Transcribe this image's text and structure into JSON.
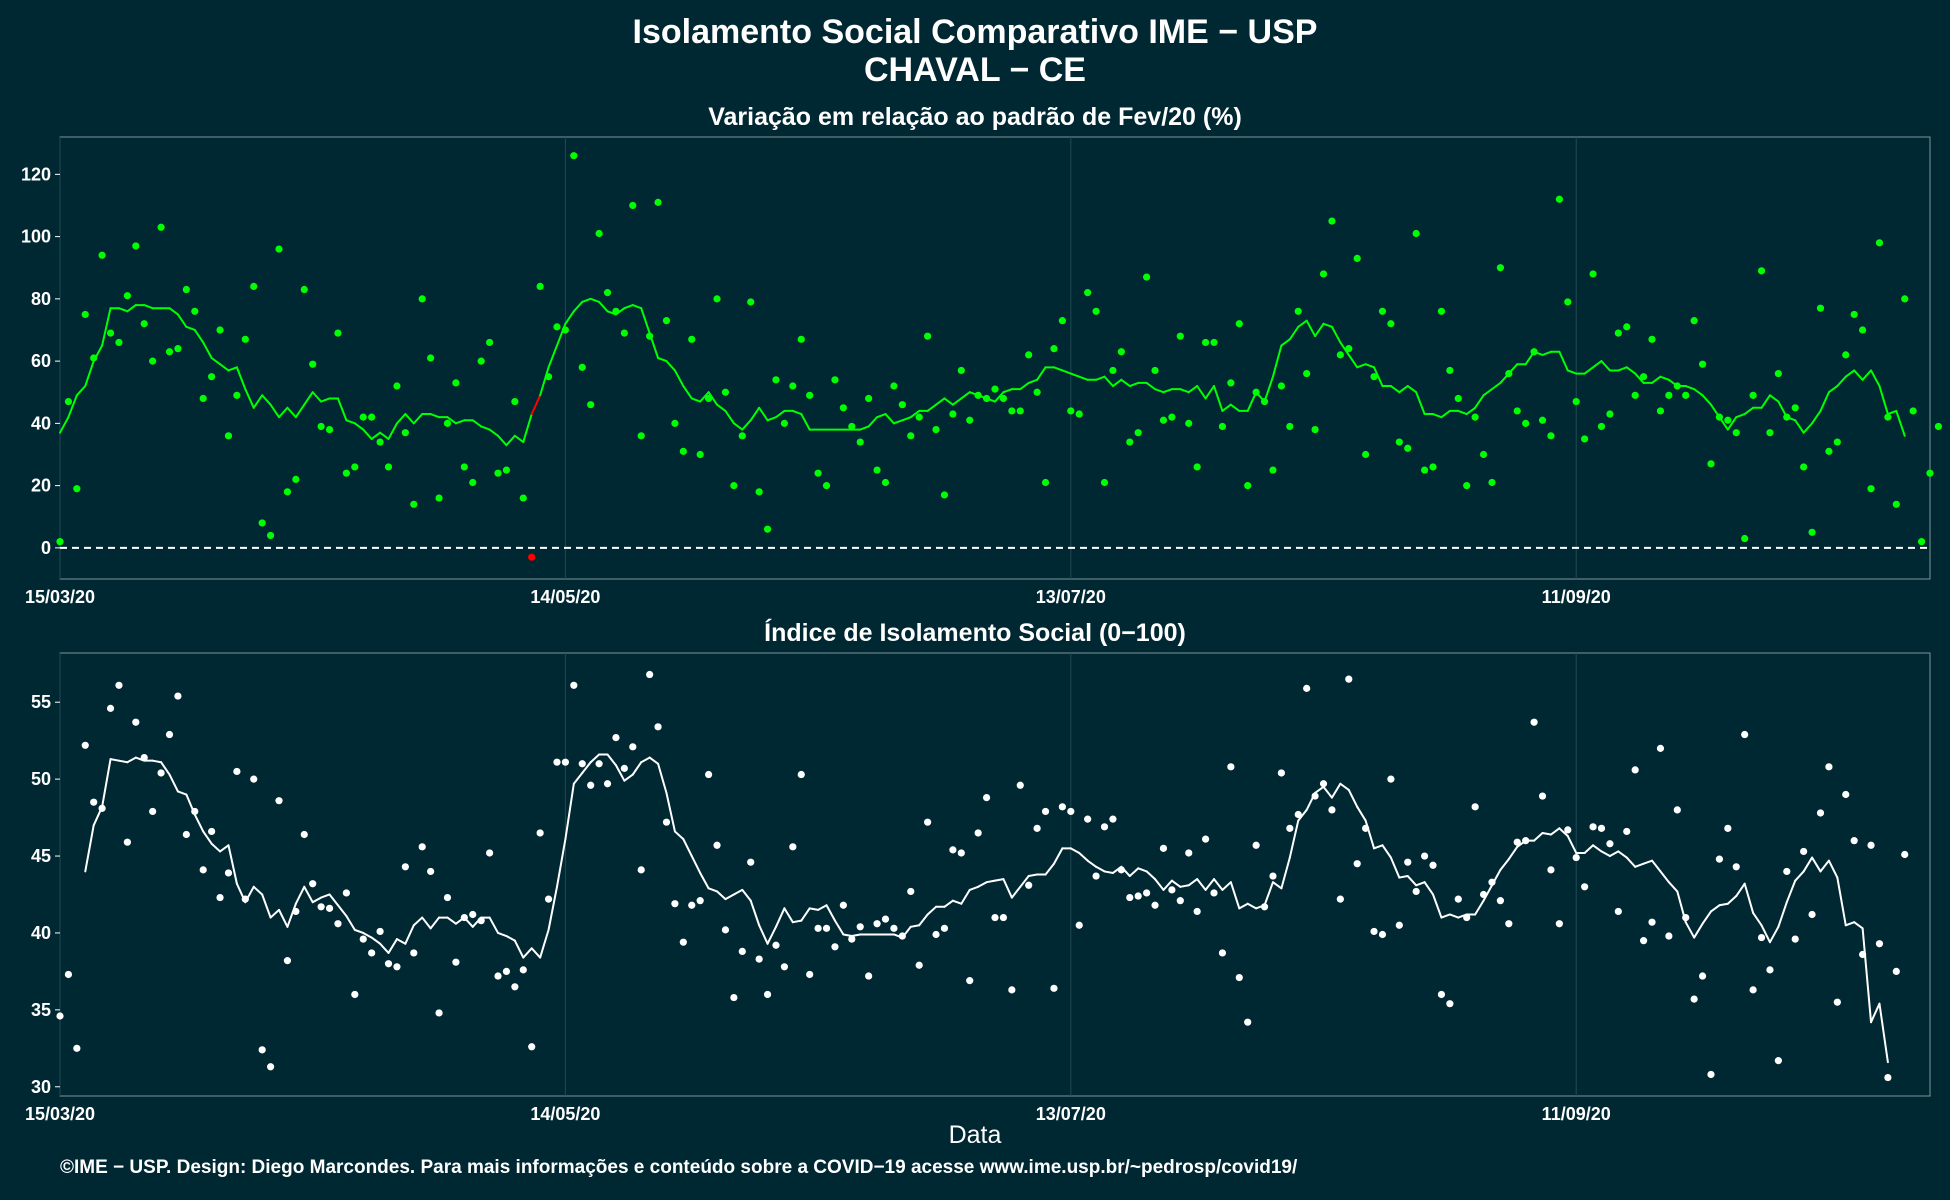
{
  "header": {
    "title": "Isolamento Social Comparativo IME − USP",
    "subtitle": "CHAVAL − CE"
  },
  "footer": {
    "text": "©IME − USP. Design: Diego Marcondes. Para mais informações e conteúdo sobre a COVID−19 acesse www.ime.usp.br/~pedrosp/covid19/"
  },
  "colors": {
    "background": "#002833",
    "top_series": "#00ff00",
    "top_negative": "#ff0000",
    "bottom_series": "#ffffff",
    "grid": "#214a55"
  },
  "chart_data": [
    {
      "type": "scatter",
      "title": "Variação em relação ao padrão de Fev/20 (%)",
      "xlabel": "",
      "ylabel": "",
      "x_ticks": [
        "15/03/20",
        "14/05/20",
        "13/07/20",
        "11/09/20"
      ],
      "x_tick_days": [
        0,
        60,
        120,
        180
      ],
      "y_ticks": [
        0,
        20,
        40,
        60,
        80,
        100,
        120
      ],
      "xlim_days": [
        0,
        222
      ],
      "ylim": [
        -10,
        132
      ],
      "reference_line": 0,
      "grid": true,
      "points_start_day": 0,
      "values": [
        2,
        47,
        19,
        75,
        61,
        94,
        69,
        66,
        81,
        97,
        72,
        60,
        103,
        63,
        64,
        83,
        76,
        48,
        55,
        70,
        36,
        49,
        67,
        84,
        8,
        4,
        96,
        18,
        22,
        83,
        59,
        39,
        38,
        69,
        24,
        26,
        42,
        42,
        34,
        26,
        52,
        37,
        14,
        80,
        61,
        16,
        40,
        53,
        26,
        21,
        60,
        66,
        24,
        25,
        47,
        16,
        -3,
        84,
        55,
        71,
        70,
        126,
        58,
        46,
        101,
        82,
        76,
        69,
        110,
        36,
        68,
        111,
        73,
        40,
        31,
        67,
        30,
        48,
        80,
        50,
        20,
        36,
        79,
        18,
        6,
        54,
        40,
        52,
        67,
        49,
        24,
        20,
        54,
        45,
        39,
        34,
        48,
        25,
        21,
        52,
        46,
        36,
        42,
        68,
        38,
        17,
        43,
        57,
        41,
        49,
        48,
        51,
        48,
        44,
        44,
        62,
        50,
        21,
        64,
        73,
        44,
        43,
        82,
        76,
        21,
        57,
        63,
        34,
        37,
        87,
        57,
        41,
        42,
        68,
        40,
        26,
        66,
        66,
        39,
        53,
        72,
        20,
        50,
        47,
        25,
        52,
        39,
        76,
        56,
        38,
        88,
        105,
        62,
        64,
        93,
        30,
        55,
        76,
        72,
        34,
        32,
        101,
        25,
        26,
        76,
        57,
        48,
        20,
        42,
        30,
        21,
        90,
        56,
        44,
        40,
        63,
        41,
        36,
        112,
        79,
        47,
        35,
        88,
        39,
        43,
        69,
        71,
        49,
        55,
        67,
        44,
        49,
        52,
        49,
        73,
        59,
        27,
        42,
        41,
        37,
        3,
        49,
        89,
        37,
        56,
        42,
        45,
        26,
        5,
        77,
        31,
        34,
        62,
        75,
        70,
        19,
        98,
        42,
        14,
        80,
        44,
        2,
        24,
        39
      ],
      "trend_start_day": 0,
      "trend": [
        37,
        42,
        49,
        52,
        60,
        65,
        77,
        77,
        76,
        78,
        78,
        77,
        77,
        77,
        75,
        71,
        70,
        66,
        61,
        59,
        57,
        58,
        51,
        45,
        49,
        46,
        42,
        45,
        42,
        46,
        50,
        47,
        48,
        48,
        41,
        40,
        38,
        35,
        37,
        35,
        40,
        43,
        40,
        43,
        43,
        42,
        42,
        40,
        41,
        41,
        39,
        38,
        36,
        33,
        36,
        34,
        43,
        49,
        58,
        65,
        72,
        76,
        79,
        80,
        79,
        76,
        75,
        77,
        78,
        77,
        69,
        61,
        60,
        57,
        52,
        48,
        47,
        50,
        46,
        44,
        40,
        38,
        41,
        45,
        41,
        42,
        44,
        44,
        43,
        38,
        38,
        38,
        38,
        38,
        38,
        38,
        39,
        42,
        43,
        40,
        41,
        42,
        44,
        44,
        46,
        48,
        46,
        48,
        50,
        49,
        48,
        47,
        50,
        51,
        51,
        53,
        54,
        58,
        58,
        57,
        56,
        55,
        54,
        54,
        55,
        52,
        54,
        52,
        53,
        53,
        51,
        50,
        51,
        51,
        50,
        52,
        48,
        52,
        44,
        46,
        44,
        44,
        50,
        47,
        55,
        65,
        67,
        71,
        73,
        68,
        72,
        71,
        66,
        62,
        58,
        59,
        58,
        52,
        52,
        50,
        52,
        50,
        43,
        43,
        42,
        44,
        44,
        43,
        45,
        49,
        51,
        53,
        56,
        59,
        59,
        63,
        62,
        63,
        63,
        57,
        56,
        56,
        58,
        60,
        57,
        57,
        58,
        56,
        53,
        53,
        55,
        54,
        52,
        52,
        51,
        49,
        46,
        42,
        38,
        42,
        43,
        45,
        45,
        49,
        47,
        42,
        41,
        37,
        40,
        44,
        50,
        52,
        55,
        57,
        54,
        57,
        52,
        43,
        44,
        36
      ]
    },
    {
      "type": "scatter",
      "title": "Índice de Isolamento Social (0−100)",
      "xlabel": "Data",
      "ylabel": "",
      "x_ticks": [
        "15/03/20",
        "14/05/20",
        "13/07/20",
        "11/09/20"
      ],
      "x_tick_days": [
        0,
        60,
        120,
        180
      ],
      "y_ticks": [
        30,
        35,
        40,
        45,
        50,
        55
      ],
      "xlim_days": [
        0,
        222
      ],
      "ylim": [
        29.4,
        58.2
      ],
      "grid": true,
      "points_start_day": 0,
      "values": [
        34.6,
        37.3,
        32.5,
        52.2,
        48.5,
        48.1,
        54.6,
        56.1,
        45.9,
        53.7,
        51.4,
        47.9,
        50.4,
        52.9,
        55.4,
        46.4,
        47.9,
        44.1,
        46.6,
        42.3,
        43.9,
        50.5,
        42.2,
        50.0,
        32.4,
        31.3,
        48.6,
        38.2,
        41.4,
        46.4,
        43.2,
        41.7,
        41.6,
        40.6,
        42.6,
        36.0,
        39.6,
        38.7,
        40.1,
        38.0,
        37.8,
        44.3,
        38.7,
        45.6,
        44.0,
        34.8,
        42.3,
        38.1,
        41.0,
        41.2,
        40.8,
        45.2,
        37.2,
        37.5,
        36.5,
        37.6,
        32.6,
        46.5,
        42.2,
        51.1,
        51.1,
        56.1,
        51.0,
        49.6,
        51.0,
        49.7,
        52.7,
        50.7,
        52.1,
        44.1,
        56.8,
        53.4,
        47.2,
        41.9,
        39.4,
        41.8,
        42.1,
        50.3,
        45.7,
        40.2,
        35.8,
        38.8,
        44.6,
        38.3,
        36.0,
        39.2,
        37.8,
        45.6,
        50.3,
        37.3,
        40.3,
        40.3,
        39.1,
        41.8,
        39.6,
        40.4,
        37.2,
        40.6,
        40.9,
        40.3,
        39.8,
        42.7,
        37.9,
        47.2,
        39.9,
        40.3,
        45.4,
        45.2,
        36.9,
        46.5,
        48.8,
        41.0,
        41.0,
        36.3,
        49.6,
        43.1,
        46.8,
        47.9,
        36.4,
        48.2,
        47.9,
        40.5,
        47.4,
        43.7,
        46.9,
        47.4,
        44.1,
        42.3,
        42.4,
        42.6,
        41.8,
        45.5,
        42.8,
        42.1,
        45.2,
        41.4,
        46.1,
        42.6,
        38.7,
        50.8,
        37.1,
        34.2,
        45.7,
        41.7,
        43.7,
        50.4,
        46.8,
        47.7,
        55.9,
        48.9,
        49.7,
        48.0,
        42.2,
        56.5,
        44.5,
        46.8,
        40.1,
        39.9,
        50.0,
        40.5,
        44.6,
        42.7,
        45.0,
        44.4,
        36.0,
        35.4,
        42.2,
        41.0,
        48.2,
        42.5,
        43.3,
        42.1,
        40.6,
        45.9,
        46.0,
        53.7,
        48.9,
        44.1,
        40.6,
        46.7,
        44.9,
        43.0,
        46.9,
        46.8,
        45.8,
        41.4,
        46.6,
        50.6,
        39.5,
        40.7,
        52.0,
        39.8,
        48.0,
        41.0,
        35.7,
        37.2,
        30.8,
        44.8,
        46.8,
        44.3,
        52.9,
        36.3,
        39.7,
        37.6,
        31.7,
        44.0,
        39.6,
        45.3,
        41.2,
        47.8,
        50.8,
        35.5,
        49.0,
        46.0,
        38.6,
        45.7,
        39.3,
        30.6,
        37.5,
        45.1
      ],
      "trend_start_day": 3,
      "trend": [
        44.0,
        47.0,
        48.2,
        51.3,
        51.2,
        51.1,
        51.4,
        51.2,
        51.2,
        51.1,
        50.3,
        49.2,
        49.0,
        47.7,
        46.6,
        45.8,
        45.3,
        45.7,
        43.2,
        42.0,
        43.0,
        42.5,
        41.0,
        41.5,
        40.4,
        41.9,
        43.0,
        42.0,
        42.3,
        42.5,
        41.8,
        41.1,
        40.2,
        40.0,
        39.7,
        39.3,
        38.7,
        39.6,
        39.3,
        40.5,
        41.0,
        40.3,
        41.0,
        41.0,
        40.6,
        41.0,
        40.4,
        41.0,
        41.0,
        40.0,
        39.8,
        39.5,
        38.4,
        39.0,
        38.4,
        40.2,
        43.0,
        46.1,
        49.7,
        50.4,
        51.1,
        51.6,
        51.6,
        50.9,
        49.9,
        50.3,
        51.1,
        51.4,
        51.0,
        49.1,
        46.6,
        46.1,
        45.0,
        43.9,
        42.9,
        42.7,
        42.2,
        42.5,
        42.8,
        42.1,
        40.5,
        39.3,
        40.4,
        41.6,
        40.7,
        40.8,
        41.6,
        41.5,
        41.8,
        40.8,
        39.9,
        39.8,
        39.9,
        39.9,
        39.9,
        39.9,
        39.9,
        39.7,
        40.4,
        40.5,
        41.2,
        41.7,
        41.7,
        42.1,
        41.9,
        42.8,
        43.0,
        43.3,
        43.4,
        43.5,
        42.3,
        43.0,
        43.7,
        43.8,
        43.8,
        44.5,
        45.5,
        45.5,
        45.2,
        44.7,
        44.3,
        44.0,
        43.9,
        44.3,
        43.7,
        44.2,
        44.0,
        43.5,
        42.8,
        43.4,
        43.0,
        43.1,
        43.5,
        42.8,
        43.5,
        42.8,
        43.3,
        41.6,
        41.9,
        41.6,
        41.8,
        43.3,
        42.9,
        44.9,
        47.3,
        48.0,
        49.1,
        49.5,
        48.8,
        49.7,
        49.3,
        48.2,
        47.3,
        45.5,
        45.7,
        44.9,
        43.6,
        43.7,
        43.1,
        43.3,
        42.5,
        41.0,
        41.2,
        41.0,
        41.2,
        41.2,
        42.1,
        43.1,
        44.1,
        44.8,
        45.6,
        46.0,
        46.0,
        46.5,
        46.4,
        46.8,
        46.3,
        45.2,
        45.2,
        45.7,
        45.3,
        45.0,
        45.3,
        44.9,
        44.3,
        44.5,
        44.7,
        44.0,
        43.3,
        42.7,
        40.7,
        39.7,
        40.6,
        41.4,
        41.8,
        41.9,
        42.4,
        43.2,
        41.3,
        40.5,
        39.4,
        40.4,
        42.0,
        43.4,
        44.0,
        44.9,
        44.0,
        44.7,
        43.6,
        40.5,
        40.7,
        40.3,
        34.2,
        35.4,
        31.6
      ]
    }
  ]
}
